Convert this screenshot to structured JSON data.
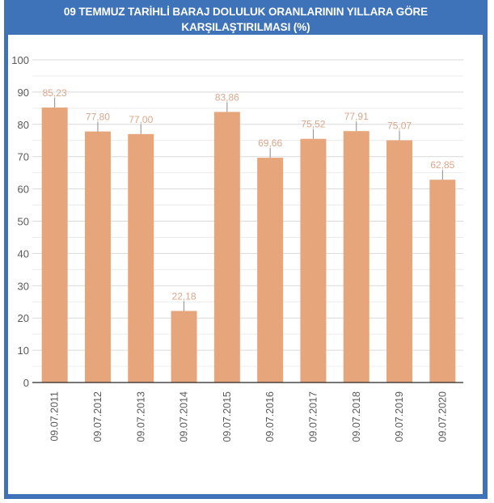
{
  "header": {
    "title_line1": "09 TEMMUZ TARİHLİ BARAJ DOLULUK ORANLARININ YILLARA GÖRE",
    "title_line2": "KARŞILAŞTIRILMASI (%)"
  },
  "colors": {
    "frame": "#3f73b9",
    "bar": "#e6a57a",
    "label": "#d9a78a",
    "grid": "#d9d9d9",
    "axis_text": "#595959"
  },
  "chart_data": {
    "type": "bar",
    "title": "09 TEMMUZ TARİHLİ BARAJ DOLULUK ORANLARININ YILLARA GÖRE KARŞILAŞTIRILMASI (%)",
    "xlabel": "",
    "ylabel": "",
    "ylim": [
      0,
      100
    ],
    "yticks": [
      0,
      10,
      20,
      30,
      40,
      50,
      60,
      70,
      80,
      90,
      100
    ],
    "grid": true,
    "legend": null,
    "categories": [
      "09.07.2011",
      "09.07.2012",
      "09.07.2013",
      "09.07.2014",
      "09.07.2015",
      "09.07.2016",
      "09.07.2017",
      "09.07.2018",
      "09.07.2019",
      "09.07.2020"
    ],
    "values": [
      85.23,
      77.8,
      77.0,
      22.18,
      83.86,
      69.66,
      75.52,
      77.91,
      75.07,
      62.85
    ],
    "value_labels": [
      "85,23",
      "77,80",
      "77,00",
      "22,18",
      "83,86",
      "69,66",
      "75,52",
      "77,91",
      "75,07",
      "62,85"
    ]
  }
}
